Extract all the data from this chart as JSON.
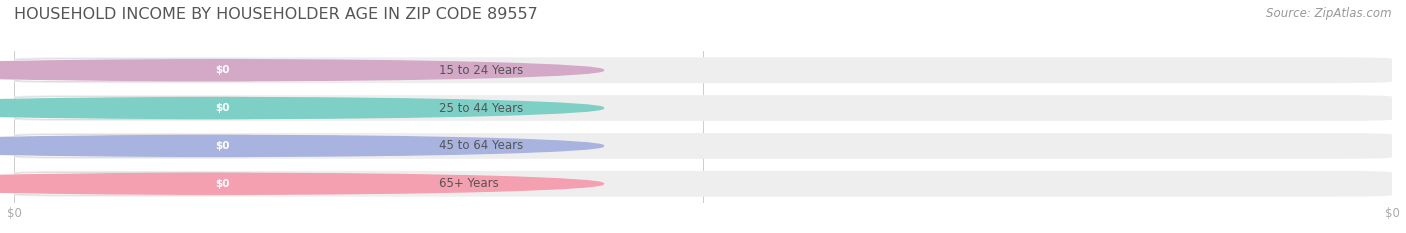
{
  "title": "HOUSEHOLD INCOME BY HOUSEHOLDER AGE IN ZIP CODE 89557",
  "source": "Source: ZipAtlas.com",
  "categories": [
    "15 to 24 Years",
    "25 to 44 Years",
    "45 to 64 Years",
    "65+ Years"
  ],
  "values": [
    0,
    0,
    0,
    0
  ],
  "bar_colors": [
    "#d4a8c7",
    "#7ecfc5",
    "#a8b4df",
    "#f4a0b0"
  ],
  "bar_track_color": "#eeeeee",
  "background_color": "#ffffff",
  "title_color": "#555555",
  "source_color": "#999999",
  "tick_label_color": "#aaaaaa",
  "title_fontsize": 11.5,
  "source_fontsize": 8.5,
  "category_fontsize": 8.5,
  "tick_fontsize": 8.5,
  "x_tick_positions": [
    0.0,
    0.5,
    1.0
  ],
  "x_tick_labels": [
    "$0",
    "",
    "$0"
  ]
}
